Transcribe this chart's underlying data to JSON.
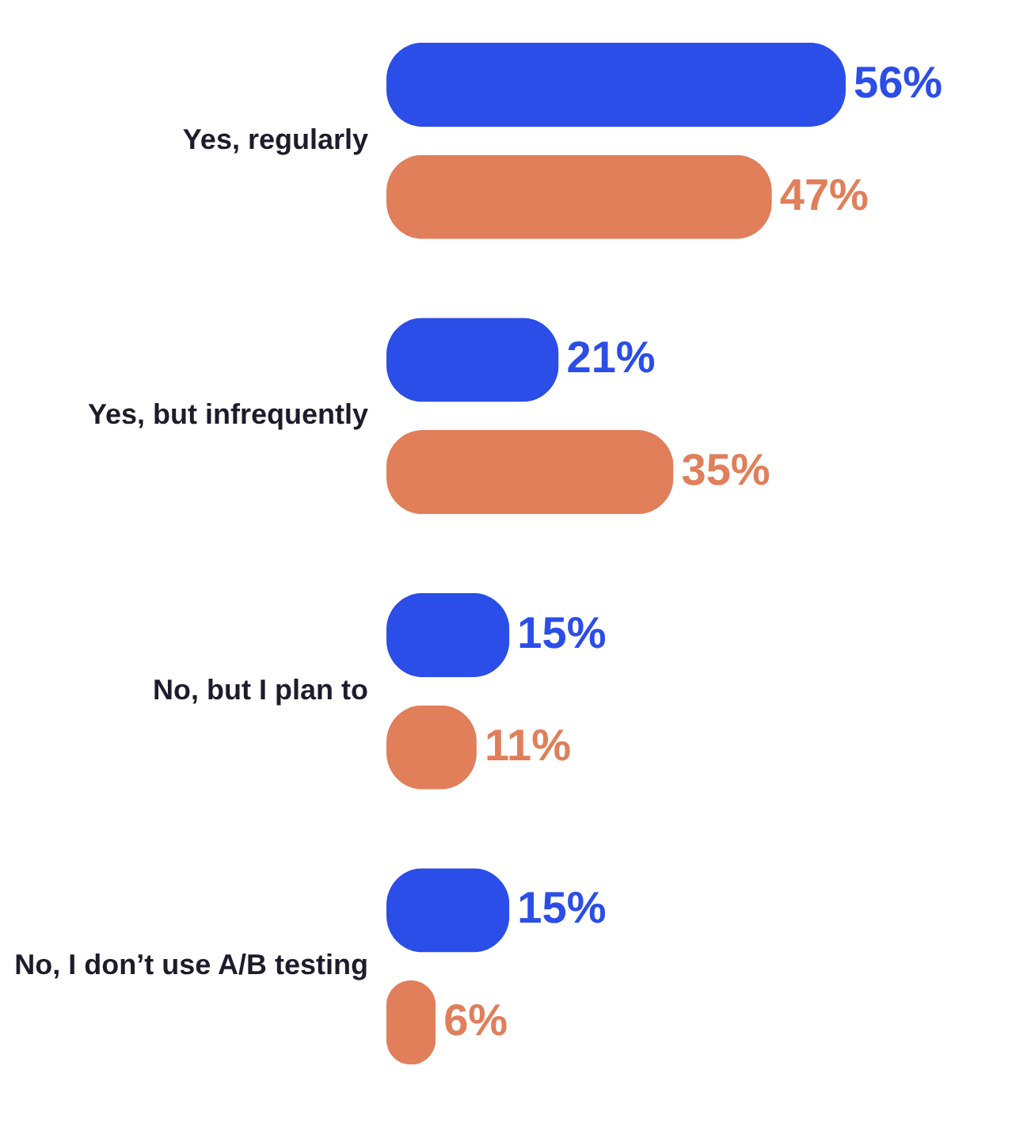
{
  "chart_data": {
    "type": "bar",
    "orientation": "horizontal",
    "categories": [
      "Yes, regularly",
      "Yes, but infrequently",
      "No, but I plan to",
      "No, I don’t use A/B testing"
    ],
    "series": [
      {
        "color": "#2b4de8",
        "values": [
          56,
          21,
          15,
          15
        ],
        "value_labels": [
          "56%",
          "21%",
          "15%",
          "15%"
        ]
      },
      {
        "color": "#e07f5a",
        "values": [
          47,
          35,
          11,
          6
        ],
        "value_labels": [
          "47%",
          "35%",
          "11%",
          "6%"
        ]
      }
    ]
  }
}
